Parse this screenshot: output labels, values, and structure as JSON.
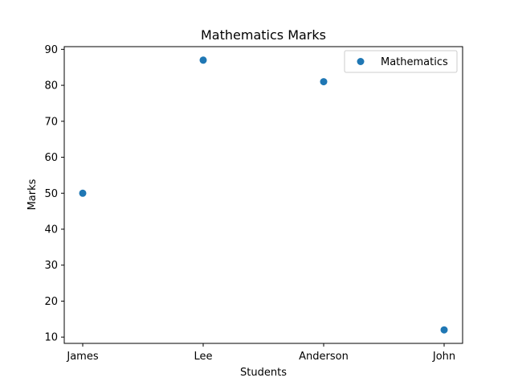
{
  "chart_data": {
    "type": "scatter",
    "title": "Mathematics Marks",
    "xlabel": "Students",
    "ylabel": "Marks",
    "categories": [
      "James",
      "Lee",
      "Anderson",
      "John"
    ],
    "series": [
      {
        "name": "Mathematics",
        "color": "#1f77b4",
        "values": [
          50,
          87,
          81,
          12
        ]
      }
    ],
    "ylim": [
      8.25,
      90.75
    ],
    "yticks": [
      10,
      20,
      30,
      40,
      50,
      60,
      70,
      80,
      90
    ],
    "grid": false,
    "legend_position": "top-right"
  }
}
